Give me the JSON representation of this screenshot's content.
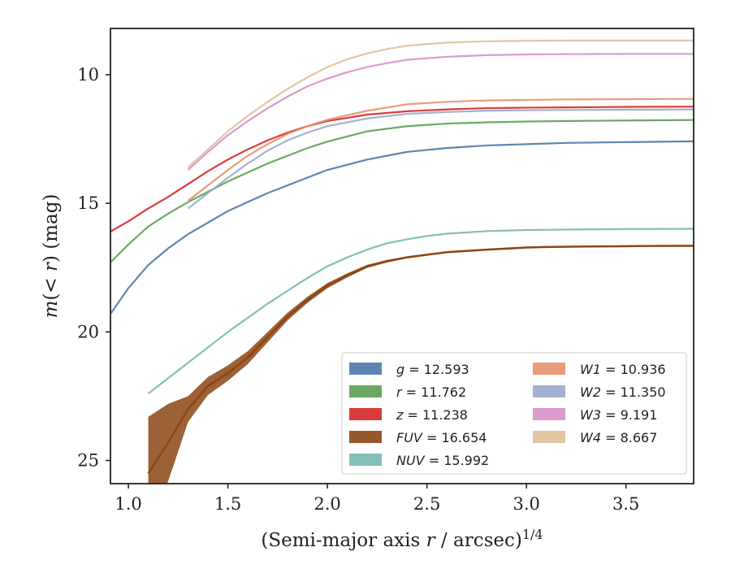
{
  "chart_data": {
    "type": "line",
    "xlabel": "(Semi-major axis r / arcsec)",
    "xlabel_italic": "r",
    "xlabel_sup": "1/4",
    "ylabel": "m(< r) (mag)",
    "xlim": [
      0.91,
      3.84
    ],
    "ylim": [
      25.9,
      8.2
    ],
    "y_inverted": true,
    "xticks": [
      1.0,
      1.5,
      2.0,
      2.5,
      3.0,
      3.5
    ],
    "xtick_labels": [
      "1.0",
      "1.5",
      "2.0",
      "2.5",
      "3.0",
      "3.5"
    ],
    "yticks": [
      10,
      15,
      20,
      25
    ],
    "ytick_labels": [
      "10",
      "15",
      "20",
      "25"
    ],
    "grid": false,
    "legend_position": "lower-right",
    "legend_columns": 2,
    "series": [
      {
        "name": "g",
        "label": "g = 12.593",
        "color": "#4c78a8",
        "x": [
          0.91,
          1.0,
          1.1,
          1.2,
          1.3,
          1.4,
          1.5,
          1.6,
          1.7,
          1.8,
          1.9,
          2.0,
          2.2,
          2.4,
          2.6,
          2.8,
          3.0,
          3.2,
          3.5,
          3.84
        ],
        "y": [
          19.3,
          18.3,
          17.4,
          16.75,
          16.2,
          15.75,
          15.3,
          14.95,
          14.6,
          14.3,
          14.0,
          13.7,
          13.3,
          13.0,
          12.85,
          12.75,
          12.7,
          12.65,
          12.62,
          12.59
        ]
      },
      {
        "name": "r",
        "label": "r = 11.762",
        "color": "#59a14f",
        "x": [
          0.91,
          1.0,
          1.1,
          1.2,
          1.3,
          1.4,
          1.5,
          1.6,
          1.7,
          1.8,
          1.9,
          2.0,
          2.2,
          2.4,
          2.6,
          2.8,
          3.0,
          3.2,
          3.5,
          3.84
        ],
        "y": [
          17.3,
          16.6,
          15.9,
          15.4,
          14.95,
          14.55,
          14.15,
          13.8,
          13.45,
          13.15,
          12.85,
          12.6,
          12.2,
          12.0,
          11.9,
          11.85,
          11.82,
          11.8,
          11.78,
          11.76
        ]
      },
      {
        "name": "z",
        "label": "z = 11.238",
        "color": "#d62728",
        "x": [
          0.91,
          1.0,
          1.1,
          1.2,
          1.3,
          1.4,
          1.5,
          1.6,
          1.7,
          1.8,
          1.9,
          2.0,
          2.2,
          2.4,
          2.6,
          2.8,
          3.0,
          3.2,
          3.5,
          3.84
        ],
        "y": [
          16.1,
          15.7,
          15.2,
          14.75,
          14.25,
          13.75,
          13.3,
          12.9,
          12.55,
          12.25,
          12.0,
          11.8,
          11.55,
          11.42,
          11.35,
          11.3,
          11.28,
          11.27,
          11.25,
          11.24
        ]
      },
      {
        "name": "FUV",
        "label": "FUV = 16.654",
        "color": "#8b4513",
        "band": true,
        "x": [
          1.1,
          1.2,
          1.3,
          1.4,
          1.5,
          1.6,
          1.7,
          1.8,
          1.9,
          2.0,
          2.1,
          2.2,
          2.3,
          2.4,
          2.5,
          2.6,
          2.8,
          3.0,
          3.1,
          3.3,
          3.6,
          3.84
        ],
        "y": [
          25.5,
          24.3,
          23.0,
          22.1,
          21.6,
          21.0,
          20.2,
          19.4,
          18.75,
          18.2,
          17.8,
          17.45,
          17.25,
          17.1,
          17.0,
          16.9,
          16.8,
          16.72,
          16.7,
          16.68,
          16.66,
          16.65
        ],
        "spread": [
          2.2,
          1.5,
          0.5,
          0.35,
          0.3,
          0.25,
          0.2,
          0.15,
          0.12,
          0.1,
          0.08,
          0.06,
          0.05,
          0.04,
          0.03,
          0.03,
          0.03,
          0.02,
          0.02,
          0.02,
          0.02,
          0.02
        ]
      },
      {
        "name": "NUV",
        "label": "NUV = 15.992",
        "color": "#76b7b2",
        "x": [
          1.1,
          1.2,
          1.3,
          1.4,
          1.5,
          1.6,
          1.7,
          1.8,
          1.9,
          2.0,
          2.1,
          2.2,
          2.3,
          2.4,
          2.5,
          2.6,
          2.8,
          3.0,
          3.2,
          3.5,
          3.84
        ],
        "y": [
          22.4,
          21.8,
          21.2,
          20.6,
          20.0,
          19.45,
          18.9,
          18.4,
          17.9,
          17.45,
          17.1,
          16.8,
          16.55,
          16.4,
          16.27,
          16.18,
          16.08,
          16.04,
          16.02,
          16.0,
          15.99
        ]
      },
      {
        "name": "W1",
        "label": "W1 = 10.936",
        "color": "#e8906a",
        "x": [
          1.3,
          1.4,
          1.5,
          1.6,
          1.7,
          1.8,
          1.9,
          2.0,
          2.2,
          2.4,
          2.6,
          2.8,
          3.0,
          3.2,
          3.5,
          3.84
        ],
        "y": [
          14.9,
          14.3,
          13.7,
          13.15,
          12.7,
          12.3,
          12.0,
          11.75,
          11.4,
          11.15,
          11.05,
          11.0,
          10.98,
          10.96,
          10.95,
          10.94
        ]
      },
      {
        "name": "W2",
        "label": "W2 = 11.350",
        "color": "#9aa8cc",
        "x": [
          1.3,
          1.4,
          1.5,
          1.6,
          1.7,
          1.8,
          1.9,
          2.0,
          2.2,
          2.4,
          2.6,
          2.8,
          3.0,
          3.2,
          3.5,
          3.84
        ],
        "y": [
          15.2,
          14.6,
          14.0,
          13.45,
          12.95,
          12.55,
          12.25,
          12.0,
          11.7,
          11.52,
          11.45,
          11.4,
          11.38,
          11.37,
          11.36,
          11.35
        ]
      },
      {
        "name": "W3",
        "label": "W3 = 9.191",
        "color": "#d98fc6",
        "x": [
          1.3,
          1.4,
          1.5,
          1.6,
          1.7,
          1.8,
          1.9,
          2.0,
          2.1,
          2.2,
          2.3,
          2.4,
          2.6,
          2.8,
          3.0,
          3.2,
          3.5,
          3.84
        ],
        "y": [
          13.7,
          13.0,
          12.35,
          11.8,
          11.3,
          10.85,
          10.45,
          10.15,
          9.9,
          9.7,
          9.55,
          9.42,
          9.3,
          9.24,
          9.21,
          9.2,
          9.19,
          9.19
        ]
      },
      {
        "name": "W4",
        "label": "W4 = 8.667",
        "color": "#dcc19a",
        "x": [
          1.3,
          1.4,
          1.5,
          1.6,
          1.7,
          1.8,
          1.9,
          2.0,
          2.1,
          2.2,
          2.3,
          2.4,
          2.6,
          2.8,
          3.0,
          3.2,
          3.5,
          3.84
        ],
        "y": [
          13.6,
          12.9,
          12.2,
          11.6,
          11.05,
          10.55,
          10.1,
          9.7,
          9.4,
          9.17,
          9.0,
          8.87,
          8.75,
          8.7,
          8.68,
          8.67,
          8.67,
          8.67
        ]
      }
    ],
    "legend": [
      {
        "italic": "g",
        "rest": " = 12.593",
        "color": "#4c78a8"
      },
      {
        "italic": "r",
        "rest": " = 11.762",
        "color": "#59a14f"
      },
      {
        "italic": "z",
        "rest": " = 11.238",
        "color": "#d62728"
      },
      {
        "italic": "FUV",
        "rest": " = 16.654",
        "color": "#8b4513"
      },
      {
        "italic": "NUV",
        "rest": " = 15.992",
        "color": "#76b7b2"
      },
      {
        "italic": "W1",
        "rest": " = 10.936",
        "color": "#e8906a"
      },
      {
        "italic": "W2",
        "rest": " = 11.350",
        "color": "#9aa8cc"
      },
      {
        "italic": "W3",
        "rest": " = 9.191",
        "color": "#d98fc6"
      },
      {
        "italic": "W4",
        "rest": " = 8.667",
        "color": "#dcc19a"
      }
    ]
  }
}
